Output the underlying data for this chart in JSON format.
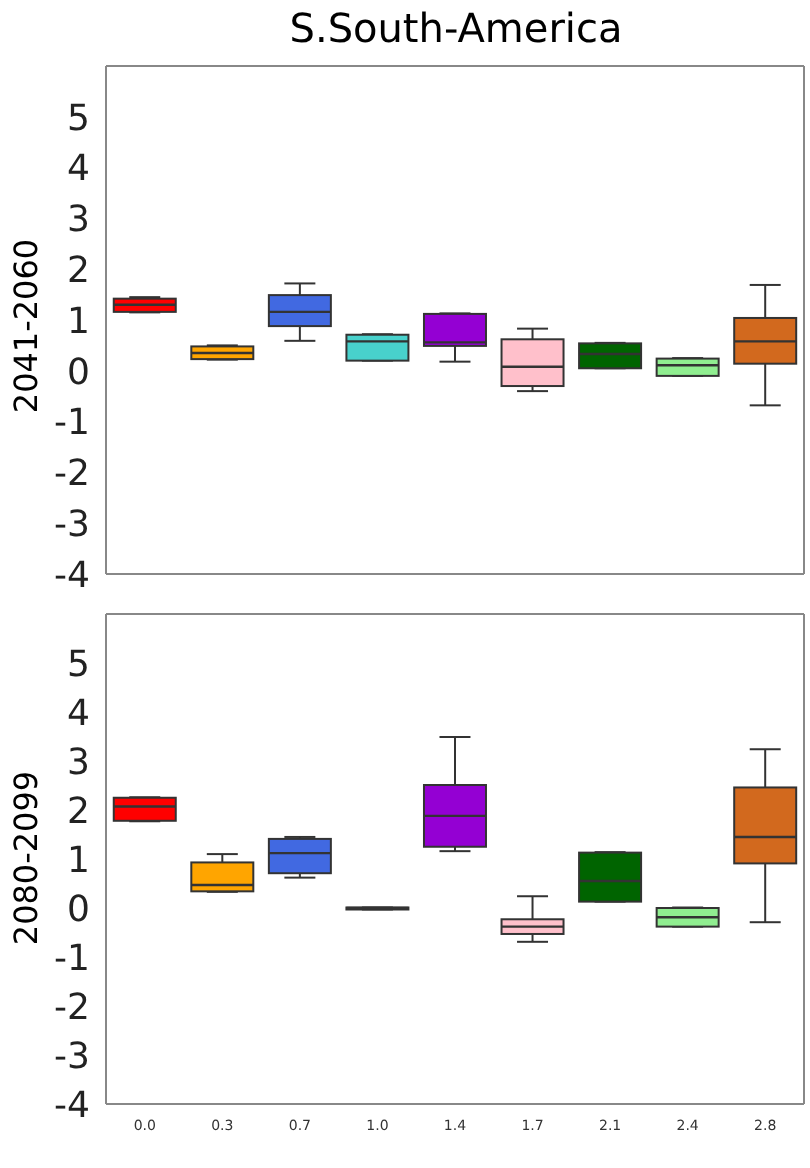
{
  "chart_data": [
    {
      "type": "box",
      "title": "S.South-America",
      "ylabel": "2041-2060",
      "categories": [
        "0.0",
        "0.3",
        "0.7",
        "1.0",
        "1.4",
        "1.7",
        "2.1",
        "2.4",
        "2.8"
      ],
      "tick_labels": "y",
      "ylim": [
        -4,
        6
      ],
      "yticks": [
        -4,
        -3,
        -2,
        -1,
        0,
        1,
        2,
        3,
        4,
        5
      ],
      "colors": [
        "#ff0000",
        "#ffa500",
        "#4169e1",
        "#48d1cc",
        "#9400d3",
        "#ffc0cb",
        "#006400",
        "#90ee90",
        "#d2691e"
      ],
      "boxes": [
        {
          "low": 1.15,
          "q1": 1.16,
          "median": 1.3,
          "q3": 1.42,
          "high": 1.45
        },
        {
          "low": 0.22,
          "q1": 0.23,
          "median": 0.35,
          "q3": 0.48,
          "high": 0.5
        },
        {
          "low": 0.59,
          "q1": 0.88,
          "median": 1.16,
          "q3": 1.49,
          "high": 1.72
        },
        {
          "low": 0.2,
          "q1": 0.2,
          "median": 0.58,
          "q3": 0.71,
          "high": 0.72
        },
        {
          "low": 0.18,
          "q1": 0.49,
          "median": 0.56,
          "q3": 1.12,
          "high": 1.13
        },
        {
          "low": -0.4,
          "q1": -0.3,
          "median": 0.08,
          "q3": 0.62,
          "high": 0.83
        },
        {
          "low": 0.05,
          "q1": 0.05,
          "median": 0.33,
          "q3": 0.54,
          "high": 0.55
        },
        {
          "low": -0.1,
          "q1": -0.1,
          "median": 0.11,
          "q3": 0.24,
          "high": 0.25
        },
        {
          "low": -0.68,
          "q1": 0.14,
          "median": 0.58,
          "q3": 1.04,
          "high": 1.69
        }
      ]
    },
    {
      "type": "box",
      "ylabel": "2080-2099",
      "categories": [
        "0.0",
        "0.3",
        "0.7",
        "1.0",
        "1.4",
        "1.7",
        "2.1",
        "2.4",
        "2.8"
      ],
      "ylim": [
        -4,
        6
      ],
      "yticks": [
        -4,
        -3,
        -2,
        -1,
        0,
        1,
        2,
        3,
        4,
        5
      ],
      "colors": [
        "#ff0000",
        "#ffa500",
        "#4169e1",
        "#48d1cc",
        "#9400d3",
        "#ffc0cb",
        "#006400",
        "#90ee90",
        "#d2691e"
      ],
      "boxes": [
        {
          "low": 1.77,
          "q1": 1.78,
          "median": 2.07,
          "q3": 2.25,
          "high": 2.26
        },
        {
          "low": 0.33,
          "q1": 0.34,
          "median": 0.47,
          "q3": 0.93,
          "high": 1.1
        },
        {
          "low": 0.62,
          "q1": 0.71,
          "median": 1.12,
          "q3": 1.41,
          "high": 1.45
        },
        {
          "low": -0.03,
          "q1": -0.03,
          "median": 0,
          "q3": 0.01,
          "high": 0.01
        },
        {
          "low": 1.16,
          "q1": 1.25,
          "median": 1.88,
          "q3": 2.51,
          "high": 3.49
        },
        {
          "low": -0.69,
          "q1": -0.53,
          "median": -0.38,
          "q3": -0.23,
          "high": 0.24
        },
        {
          "low": 0.13,
          "q1": 0.13,
          "median": 0.55,
          "q3": 1.13,
          "high": 1.14
        },
        {
          "low": -0.38,
          "q1": -0.38,
          "median": -0.19,
          "q3": 0,
          "high": 0.01
        },
        {
          "low": -0.29,
          "q1": 0.91,
          "median": 1.45,
          "q3": 2.46,
          "high": 3.24
        }
      ]
    }
  ]
}
